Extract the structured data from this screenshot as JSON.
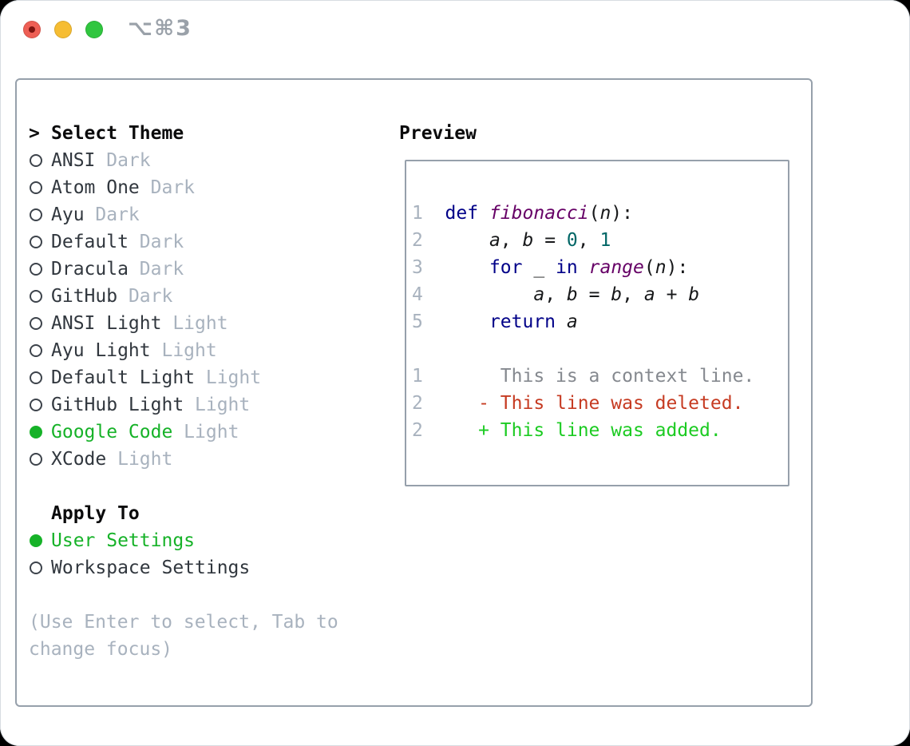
{
  "window": {
    "title": "⌥⌘3",
    "traffic_lights": [
      "close",
      "minimize",
      "zoom"
    ]
  },
  "theme_picker": {
    "heading_marker": ">",
    "heading": "Select Theme",
    "themes": [
      {
        "name": "ANSI",
        "variant": "Dark",
        "selected": false
      },
      {
        "name": "Atom One",
        "variant": "Dark",
        "selected": false
      },
      {
        "name": "Ayu",
        "variant": "Dark",
        "selected": false
      },
      {
        "name": "Default",
        "variant": "Dark",
        "selected": false
      },
      {
        "name": "Dracula",
        "variant": "Dark",
        "selected": false
      },
      {
        "name": "GitHub",
        "variant": "Dark",
        "selected": false
      },
      {
        "name": "ANSI Light",
        "variant": "Light",
        "selected": false
      },
      {
        "name": "Ayu Light",
        "variant": "Light",
        "selected": false
      },
      {
        "name": "Default Light",
        "variant": "Light",
        "selected": false
      },
      {
        "name": "GitHub Light",
        "variant": "Light",
        "selected": false
      },
      {
        "name": "Google Code",
        "variant": "Light",
        "selected": true
      },
      {
        "name": "XCode",
        "variant": "Light",
        "selected": false
      }
    ],
    "apply_to": {
      "heading": "Apply To",
      "options": [
        {
          "label": "User Settings",
          "selected": true
        },
        {
          "label": "Workspace Settings",
          "selected": false
        }
      ]
    },
    "help_lines": [
      "(Use Enter to select, Tab to",
      "change focus)"
    ]
  },
  "preview": {
    "heading": "Preview",
    "code_lines": [
      [
        [
          "num",
          "1  "
        ],
        [
          "kw",
          "def"
        ],
        [
          "plain",
          " "
        ],
        [
          "fn",
          "fibonacci"
        ],
        [
          "plain",
          "("
        ],
        [
          "id",
          "n"
        ],
        [
          "plain",
          "):"
        ]
      ],
      [
        [
          "num",
          "2  "
        ],
        [
          "plain",
          "    "
        ],
        [
          "id",
          "a"
        ],
        [
          "plain",
          ", "
        ],
        [
          "id",
          "b"
        ],
        [
          "plain",
          " = "
        ],
        [
          "lit",
          "0"
        ],
        [
          "plain",
          ", "
        ],
        [
          "lit",
          "1"
        ]
      ],
      [
        [
          "num",
          "3  "
        ],
        [
          "plain",
          "    "
        ],
        [
          "kw",
          "for"
        ],
        [
          "plain",
          " "
        ],
        [
          "id",
          "_"
        ],
        [
          "plain",
          " "
        ],
        [
          "kw",
          "in"
        ],
        [
          "plain",
          " "
        ],
        [
          "fn",
          "range"
        ],
        [
          "plain",
          "("
        ],
        [
          "id",
          "n"
        ],
        [
          "plain",
          "):"
        ]
      ],
      [
        [
          "num",
          "4  "
        ],
        [
          "plain",
          "        "
        ],
        [
          "id",
          "a"
        ],
        [
          "plain",
          ", "
        ],
        [
          "id",
          "b"
        ],
        [
          "plain",
          " = "
        ],
        [
          "id",
          "b"
        ],
        [
          "plain",
          ", "
        ],
        [
          "id",
          "a"
        ],
        [
          "plain",
          " + "
        ],
        [
          "id",
          "b"
        ]
      ],
      [
        [
          "num",
          "5  "
        ],
        [
          "plain",
          "    "
        ],
        [
          "kw",
          "return"
        ],
        [
          "plain",
          " "
        ],
        [
          "id",
          "a"
        ]
      ],
      [],
      [
        [
          "num",
          "1  "
        ],
        [
          "ctx",
          "     This is a context line."
        ]
      ],
      [
        [
          "num",
          "2  "
        ],
        [
          "del",
          "   - This line was deleted."
        ]
      ],
      [
        [
          "num",
          "2  "
        ],
        [
          "add",
          "   + This line was added."
        ]
      ]
    ]
  },
  "colors": {
    "frame": "#96a0ab",
    "heading": "#0b0b0c",
    "text": "#31373e",
    "muted": "#a8b2be",
    "circle": "#3d434b",
    "green": "#16b228",
    "title": "#9aa1a9",
    "tl_red": "#ee5f55",
    "tl_red_dot": "#7e1410",
    "tl_yellow": "#f6bd33",
    "tl_green": "#30c63f",
    "syntax_keyword": "#000088",
    "syntax_function": "#660066",
    "syntax_literal": "#006666",
    "syntax_plain": "#17181a",
    "diff_context": "#85898f",
    "diff_deleted": "#c63b22",
    "diff_added": "#1ccb22"
  }
}
